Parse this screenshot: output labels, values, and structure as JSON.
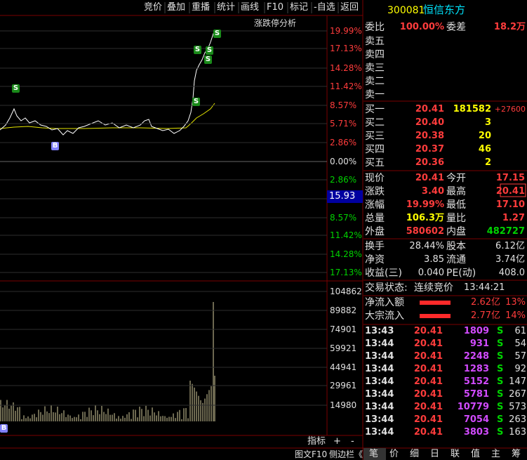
{
  "toolbar": [
    "竞价",
    "叠加",
    "重播",
    "统计",
    "画线",
    "F10",
    "标记",
    "-自选",
    "返回"
  ],
  "chart": {
    "analysis_label": "涨跌停分析",
    "price_axis": [
      "19.99%",
      "17.13%",
      "14.28%",
      "11.42%",
      "8.57%",
      "5.71%",
      "2.86%",
      "0.00%",
      "2.86%",
      "8.57%",
      "11.42%",
      "14.28%",
      "17.13%"
    ],
    "cursor_price": "15.93",
    "volume_axis": [
      "104862",
      "89882",
      "74901",
      "59921",
      "44941",
      "29961",
      "14980"
    ],
    "markers": [
      "S",
      "B",
      "S",
      "S",
      "S",
      "S",
      "S",
      "B"
    ],
    "controls": [
      "指标",
      "+",
      "-"
    ]
  },
  "footer": {
    "left": [
      "图文F10",
      "侧边栏《"
    ],
    "tabs": [
      "笔",
      "价",
      "细",
      "日",
      "联",
      "值",
      "主",
      "筹"
    ]
  },
  "quote": {
    "code": "300081",
    "name": "恒信东方",
    "ratio": {
      "label": "委比",
      "value": "100.00%",
      "diff_label": "委差",
      "diff": "18.2万"
    },
    "asks": [
      "卖五",
      "卖四",
      "卖三",
      "卖二",
      "卖一"
    ],
    "bids": [
      {
        "label": "买一",
        "price": "20.41",
        "volume": "181582",
        "change": "+27600"
      },
      {
        "label": "买二",
        "price": "20.40",
        "volume": "3"
      },
      {
        "label": "买三",
        "price": "20.38",
        "volume": "20"
      },
      {
        "label": "买四",
        "price": "20.37",
        "volume": "46"
      },
      {
        "label": "买五",
        "price": "20.36",
        "volume": "2"
      }
    ],
    "stats": [
      [
        "现价",
        "20.41",
        "今开",
        "17.15"
      ],
      [
        "涨跌",
        "3.40",
        "最高",
        "20.41"
      ],
      [
        "涨幅",
        "19.99%",
        "最低",
        "17.10"
      ],
      [
        "总量",
        "106.3万",
        "量比",
        "1.27"
      ],
      [
        "外盘",
        "580602",
        "内盘",
        "482727"
      ]
    ],
    "fundamentals": [
      [
        "换手",
        "28.44%",
        "股本",
        "6.12亿"
      ],
      [
        "净资",
        "3.85",
        "流通",
        "3.74亿"
      ],
      [
        "收益(三)",
        "0.040",
        "PE(动)",
        "408.0"
      ]
    ],
    "status": {
      "label": "交易状态:",
      "value": "连续竞价",
      "time": "13:44:21"
    },
    "flows": [
      [
        "净流入额",
        "2.62亿",
        "13%"
      ],
      [
        "大宗流入",
        "2.77亿",
        "14%"
      ]
    ],
    "ticks": [
      [
        "13:43",
        "20.41",
        "1809",
        "S",
        "61"
      ],
      [
        "13:44",
        "20.41",
        "931",
        "S",
        "54"
      ],
      [
        "13:44",
        "20.41",
        "2248",
        "S",
        "57"
      ],
      [
        "13:44",
        "20.41",
        "1283",
        "S",
        "92"
      ],
      [
        "13:44",
        "20.41",
        "5152",
        "S",
        "147"
      ],
      [
        "13:44",
        "20.41",
        "5781",
        "S",
        "267"
      ],
      [
        "13:44",
        "20.41",
        "10779",
        "S",
        "573"
      ],
      [
        "13:44",
        "20.41",
        "7054",
        "S",
        "263"
      ],
      [
        "13:44",
        "20.41",
        "3803",
        "S",
        "163"
      ]
    ]
  }
}
